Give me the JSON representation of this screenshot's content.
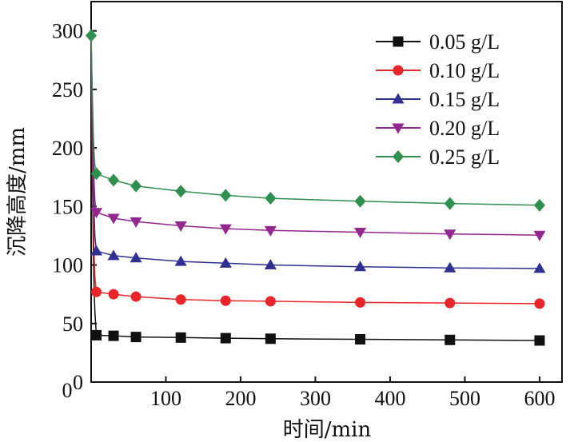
{
  "chart_data": {
    "type": "line",
    "title": "",
    "xlabel": "时间/min",
    "ylabel": "沉降高度/mm",
    "xlim": [
      0,
      630
    ],
    "ylim": [
      0,
      325
    ],
    "xticks": [
      100,
      200,
      300,
      400,
      500,
      600
    ],
    "xtick_labels": [
      "100",
      "200",
      "300",
      "400",
      "500",
      "600"
    ],
    "yticks": [
      0,
      50,
      100,
      150,
      200,
      250,
      300
    ],
    "ytick_labels": [
      "0",
      "50",
      "100",
      "150",
      "200",
      "250",
      "300"
    ],
    "x0_label": "0",
    "grid": false,
    "legend_position": "top-right",
    "series": [
      {
        "name": "0.05 g/L",
        "color": "#111111",
        "marker": "square",
        "points": [
          [
            0,
            296
          ],
          [
            0.5,
            240
          ],
          [
            1,
            200
          ],
          [
            2,
            160
          ],
          [
            3,
            110
          ],
          [
            4,
            80
          ],
          [
            5,
            60
          ],
          [
            7,
            40
          ],
          [
            30,
            39.5
          ],
          [
            60,
            38.5
          ],
          [
            120,
            38
          ],
          [
            180,
            37.5
          ],
          [
            240,
            37
          ],
          [
            360,
            36.5
          ],
          [
            480,
            36
          ],
          [
            600,
            35.5
          ]
        ],
        "marker_x": [
          7,
          30,
          60,
          120,
          180,
          240,
          360,
          480,
          600
        ]
      },
      {
        "name": "0.10 g/L",
        "color": "#e8262a",
        "marker": "circle",
        "points": [
          [
            0,
            296
          ],
          [
            1,
            230
          ],
          [
            2,
            180
          ],
          [
            3,
            140
          ],
          [
            4,
            110
          ],
          [
            5,
            90
          ],
          [
            7,
            77
          ],
          [
            30,
            75
          ],
          [
            60,
            73
          ],
          [
            120,
            70.5
          ],
          [
            180,
            69.5
          ],
          [
            240,
            69
          ],
          [
            360,
            68
          ],
          [
            480,
            67.5
          ],
          [
            600,
            67
          ]
        ],
        "marker_x": [
          7,
          30,
          60,
          120,
          180,
          240,
          360,
          480,
          600
        ]
      },
      {
        "name": "0.15 g/L",
        "color": "#2e3192",
        "marker": "triangle-up",
        "points": [
          [
            0,
            296
          ],
          [
            1,
            250
          ],
          [
            2,
            210
          ],
          [
            3,
            175
          ],
          [
            4,
            145
          ],
          [
            5,
            125
          ],
          [
            7,
            112
          ],
          [
            30,
            108
          ],
          [
            60,
            106
          ],
          [
            120,
            103
          ],
          [
            180,
            101.5
          ],
          [
            240,
            100
          ],
          [
            360,
            98.5
          ],
          [
            480,
            97.5
          ],
          [
            600,
            97
          ]
        ],
        "marker_x": [
          7,
          30,
          60,
          120,
          180,
          240,
          360,
          480,
          600
        ]
      },
      {
        "name": "0.20 g/L",
        "color": "#92278f",
        "marker": "triangle-down",
        "points": [
          [
            0,
            296
          ],
          [
            1,
            260
          ],
          [
            2,
            225
          ],
          [
            3,
            195
          ],
          [
            4,
            170
          ],
          [
            5,
            155
          ],
          [
            7,
            145
          ],
          [
            30,
            140
          ],
          [
            60,
            137
          ],
          [
            120,
            133.5
          ],
          [
            180,
            131
          ],
          [
            240,
            129.5
          ],
          [
            360,
            128
          ],
          [
            480,
            126.5
          ],
          [
            600,
            125.5
          ]
        ],
        "marker_x": [
          7,
          30,
          60,
          120,
          180,
          240,
          360,
          480,
          600
        ]
      },
      {
        "name": "0.25 g/L",
        "color": "#2f8f4f",
        "marker": "diamond",
        "points": [
          [
            0,
            296
          ],
          [
            1,
            265
          ],
          [
            2,
            235
          ],
          [
            3,
            210
          ],
          [
            4,
            195
          ],
          [
            5,
            185
          ],
          [
            7,
            178
          ],
          [
            30,
            172.5
          ],
          [
            60,
            167.5
          ],
          [
            120,
            163
          ],
          [
            180,
            159.5
          ],
          [
            240,
            157
          ],
          [
            360,
            154.5
          ],
          [
            480,
            152.5
          ],
          [
            600,
            151
          ]
        ],
        "marker_x": [
          0,
          7,
          30,
          60,
          120,
          180,
          240,
          360,
          480,
          600
        ]
      }
    ]
  }
}
